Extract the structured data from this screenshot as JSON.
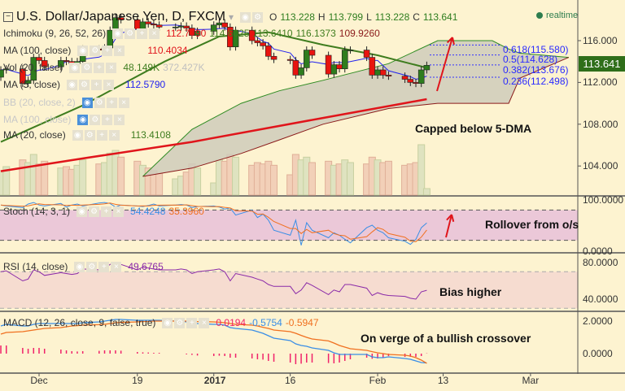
{
  "header": {
    "symbol": "U.S. Dollar/Japanese Yen, D, FXCM",
    "o_label": "O",
    "o": "113.228",
    "h_label": "H",
    "h": "113.799",
    "l_label": "L",
    "l": "113.228",
    "c_label": "C",
    "c": "113.641",
    "realtime": "realtime"
  },
  "legends": {
    "ichimoku": {
      "label": "Ichimoku (9, 26, 52, 26)",
      "values": [
        "112.7790",
        "114.6025",
        "113.6410",
        "116.1373",
        "109.9260"
      ]
    },
    "ma100": {
      "label": "MA (100, close)",
      "value": "110.4034"
    },
    "vol": {
      "label": "Vol (20, false)",
      "value1": "48.149K",
      "value2": "372.427K"
    },
    "ma5": {
      "label": "MA (5, close)",
      "value": "112.5790"
    },
    "bb": {
      "label": "BB (20, close, 2)"
    },
    "ma100b": {
      "label": "MA (100, close)"
    },
    "ma20": {
      "label": "MA (20, close)",
      "value": "113.4108"
    },
    "stoch": {
      "label": "Stoch (14, 3, 1)",
      "k": "54.4248",
      "d": "35.3960"
    },
    "rsi": {
      "label": "RSI (14, close)",
      "value": "49.6765"
    },
    "macd": {
      "label": "MACD (12, 26, close, 9, false, true)",
      "hist": "0.0194",
      "macd": "-0.5754",
      "signal": "-0.5947"
    }
  },
  "annotations": {
    "main": "Capped below 5-DMA",
    "stoch": "Rollover from o/s",
    "rsi": "Bias higher",
    "macd": "On verge of a bullish crossover"
  },
  "fib_levels": [
    {
      "label": "0.618(115.580)",
      "price": 115.58
    },
    {
      "label": "0.5(114.628)",
      "price": 114.628
    },
    {
      "label": "0.382(113.676)",
      "price": 113.676
    },
    {
      "label": "0.236(112.498)",
      "price": 112.498
    }
  ],
  "price_axis": {
    "ticks": [
      "116.000",
      "112.000",
      "108.000",
      "104.000"
    ],
    "tick_values": [
      116,
      112,
      108,
      104
    ],
    "last_price": "113.641"
  },
  "stoch_axis": {
    "ticks": [
      "100.0000",
      "0.0000"
    ]
  },
  "rsi_axis": {
    "ticks": [
      "80.0000",
      "40.0000"
    ]
  },
  "macd_axis": {
    "ticks": [
      "2.0000",
      "0.0000"
    ]
  },
  "time_axis": [
    {
      "label": "Dec",
      "date": "2016-12-01"
    },
    {
      "label": "19",
      "date": "2016-12-19"
    },
    {
      "label": "2017",
      "date": "2017-01-02",
      "bold": true
    },
    {
      "label": "16",
      "date": "2017-01-16"
    },
    {
      "label": "Feb",
      "date": "2017-02-01"
    },
    {
      "label": "13",
      "date": "2017-02-13"
    },
    {
      "label": "Mar",
      "date": "2017-03-01"
    }
  ],
  "colors": {
    "up": "#2e7d1e",
    "down": "#e8140f",
    "ma100": "#e0151b",
    "ma20": "#3f7d1f",
    "ma5": "#2222ee",
    "cloud": "#cfcbbb",
    "stoch_k": "#3a8ee6",
    "stoch_d": "#f07020",
    "rsi": "#8a2aa8",
    "macd": "#3a8ee6",
    "signal": "#f07020",
    "hist": "#f0226a",
    "background": "#fdf3d0"
  },
  "chart_data": {
    "type": "candlestick",
    "title": "U.S. Dollar/Japanese Yen, D, FXCM",
    "ylim": [
      100,
      119
    ],
    "dates": [
      "2016-11-24",
      "2016-11-25",
      "2016-11-28",
      "2016-11-29",
      "2016-11-30",
      "2016-12-01",
      "2016-12-02",
      "2016-12-05",
      "2016-12-06",
      "2016-12-07",
      "2016-12-08",
      "2016-12-09",
      "2016-12-12",
      "2016-12-13",
      "2016-12-14",
      "2016-12-15",
      "2016-12-16",
      "2016-12-19",
      "2016-12-20",
      "2016-12-21",
      "2016-12-22",
      "2016-12-23",
      "2016-12-26",
      "2016-12-27",
      "2016-12-28",
      "2016-12-29",
      "2016-12-30",
      "2017-01-02",
      "2017-01-03",
      "2017-01-04",
      "2017-01-05",
      "2017-01-06",
      "2017-01-09",
      "2017-01-10",
      "2017-01-11",
      "2017-01-12",
      "2017-01-13",
      "2017-01-16",
      "2017-01-17",
      "2017-01-18",
      "2017-01-19",
      "2017-01-20",
      "2017-01-23",
      "2017-01-24",
      "2017-01-25",
      "2017-01-26",
      "2017-01-27",
      "2017-01-30",
      "2017-01-31",
      "2017-02-01",
      "2017-02-02",
      "2017-02-03",
      "2017-02-06",
      "2017-02-07",
      "2017-02-08",
      "2017-02-09",
      "2017-02-10"
    ],
    "close": [
      113.2,
      113.3,
      111.9,
      112.2,
      114.4,
      114.1,
      113.5,
      114.1,
      114.0,
      113.8,
      114.0,
      115.2,
      115.1,
      115.3,
      117.0,
      118.2,
      118.0,
      117.1,
      117.8,
      117.6,
      117.5,
      117.3,
      117.3,
      117.4,
      117.2,
      116.5,
      116.9,
      117.5,
      117.7,
      117.3,
      115.4,
      117.0,
      116.0,
      115.8,
      115.5,
      114.5,
      114.2,
      114.1,
      112.7,
      113.4,
      115.1,
      114.6,
      112.8,
      113.7,
      113.3,
      115.1,
      115.1,
      114.4,
      112.7,
      113.2,
      112.7,
      112.6,
      112.3,
      112.0,
      111.9,
      113.2,
      113.641
    ],
    "first_open": 112.5,
    "volume_k": [
      180,
      210,
      260,
      240,
      300,
      230,
      250,
      200,
      210,
      190,
      220,
      260,
      230,
      240,
      310,
      330,
      280,
      250,
      220,
      200,
      180,
      160,
      120,
      140,
      170,
      230,
      200,
      90,
      260,
      250,
      300,
      280,
      220,
      240,
      230,
      250,
      220,
      150,
      300,
      260,
      280,
      240,
      250,
      220,
      230,
      260,
      240,
      230,
      280,
      260,
      240,
      250,
      220,
      230,
      240,
      372,
      48
    ],
    "ma100": [
      [
        "2016-11-24",
        103.5
      ],
      [
        "2016-12-10",
        104.8
      ],
      [
        "2016-12-29",
        106.3
      ],
      [
        "2017-01-22",
        108.6
      ],
      [
        "2017-02-10",
        110.4
      ]
    ],
    "ma20": [
      [
        "2016-11-24",
        106.3
      ],
      [
        "2016-12-09",
        109.8
      ],
      [
        "2016-12-24",
        114.0
      ],
      [
        "2017-01-03",
        116.4
      ],
      [
        "2017-01-12",
        116.8
      ],
      [
        "2017-01-22",
        115.6
      ],
      [
        "2017-02-01",
        114.6
      ],
      [
        "2017-02-10",
        113.4
      ]
    ],
    "cloud": [
      [
        "2016-12-20",
        103.0,
        103.0
      ],
      [
        "2016-12-29",
        107.5,
        103.8
      ],
      [
        "2017-01-07",
        110.0,
        105.2
      ],
      [
        "2017-01-14",
        111.2,
        106.5
      ],
      [
        "2017-01-22",
        112.2,
        108.0
      ],
      [
        "2017-02-03",
        113.8,
        109.5
      ],
      [
        "2017-02-12",
        116.0,
        110.0
      ],
      [
        "2017-02-22",
        116.0,
        110.0
      ],
      [
        "2017-02-25",
        115.2,
        110.0
      ],
      [
        "2017-02-27",
        114.8,
        112.4
      ],
      [
        "2017-03-08",
        114.4,
        114.4
      ]
    ],
    "stoch_k": [
      90,
      88,
      85,
      92,
      95,
      90,
      88,
      93,
      86,
      90,
      92,
      88,
      94,
      95,
      93,
      86,
      90,
      88,
      87,
      89,
      92,
      88,
      90,
      91,
      90,
      85,
      87,
      88,
      86,
      82,
      84,
      70,
      80,
      65,
      72,
      60,
      40,
      30,
      60,
      10,
      55,
      40,
      25,
      35,
      30,
      22,
      15,
      45,
      50,
      40,
      35,
      25,
      18,
      12,
      22,
      45,
      54.42
    ],
    "stoch_ylim": [
      0,
      100
    ],
    "stoch_bands": [
      80,
      20
    ],
    "rsi": [
      70,
      71,
      60,
      62,
      72,
      70,
      66,
      69,
      68,
      67,
      68,
      73,
      72,
      73,
      78,
      80,
      78,
      72,
      75,
      74,
      73,
      72,
      72,
      73,
      72,
      68,
      70,
      72,
      73,
      70,
      60,
      68,
      64,
      62,
      60,
      56,
      54,
      54,
      46,
      50,
      58,
      55,
      45,
      50,
      48,
      56,
      56,
      52,
      44,
      47,
      45,
      44,
      43,
      41,
      40,
      48,
      49.68
    ],
    "rsi_bands": [
      70,
      30
    ],
    "macd": [
      1.7,
      1.8,
      1.7,
      1.7,
      1.8,
      1.85,
      1.85,
      1.85,
      1.85,
      1.85,
      1.85,
      1.9,
      1.95,
      2.0,
      2.05,
      2.1,
      2.1,
      2.05,
      2.05,
      2.05,
      2.05,
      2.05,
      2.0,
      2.0,
      1.95,
      1.9,
      1.85,
      1.8,
      1.8,
      1.75,
      1.6,
      1.55,
      1.45,
      1.35,
      1.25,
      1.1,
      0.95,
      0.8,
      0.6,
      0.5,
      0.45,
      0.35,
      0.2,
      0.05,
      -0.05,
      -0.05,
      -0.05,
      -0.05,
      -0.2,
      -0.25,
      -0.25,
      -0.2,
      -0.3,
      -0.35,
      -0.45,
      -0.55,
      -0.5754
    ],
    "signal": [
      1.2,
      1.3,
      1.35,
      1.4,
      1.45,
      1.5,
      1.55,
      1.6,
      1.65,
      1.7,
      1.72,
      1.75,
      1.78,
      1.8,
      1.85,
      1.9,
      1.92,
      1.95,
      1.97,
      1.98,
      2.0,
      2.0,
      2.0,
      2.0,
      2.0,
      1.98,
      1.97,
      1.95,
      1.93,
      1.9,
      1.85,
      1.8,
      1.75,
      1.7,
      1.62,
      1.55,
      1.45,
      1.35,
      1.25,
      1.12,
      1.0,
      0.9,
      0.78,
      0.65,
      0.5,
      0.4,
      0.3,
      0.2,
      0.12,
      0.05,
      0.0,
      -0.05,
      -0.1,
      -0.15,
      -0.25,
      -0.4,
      -0.5947
    ]
  }
}
